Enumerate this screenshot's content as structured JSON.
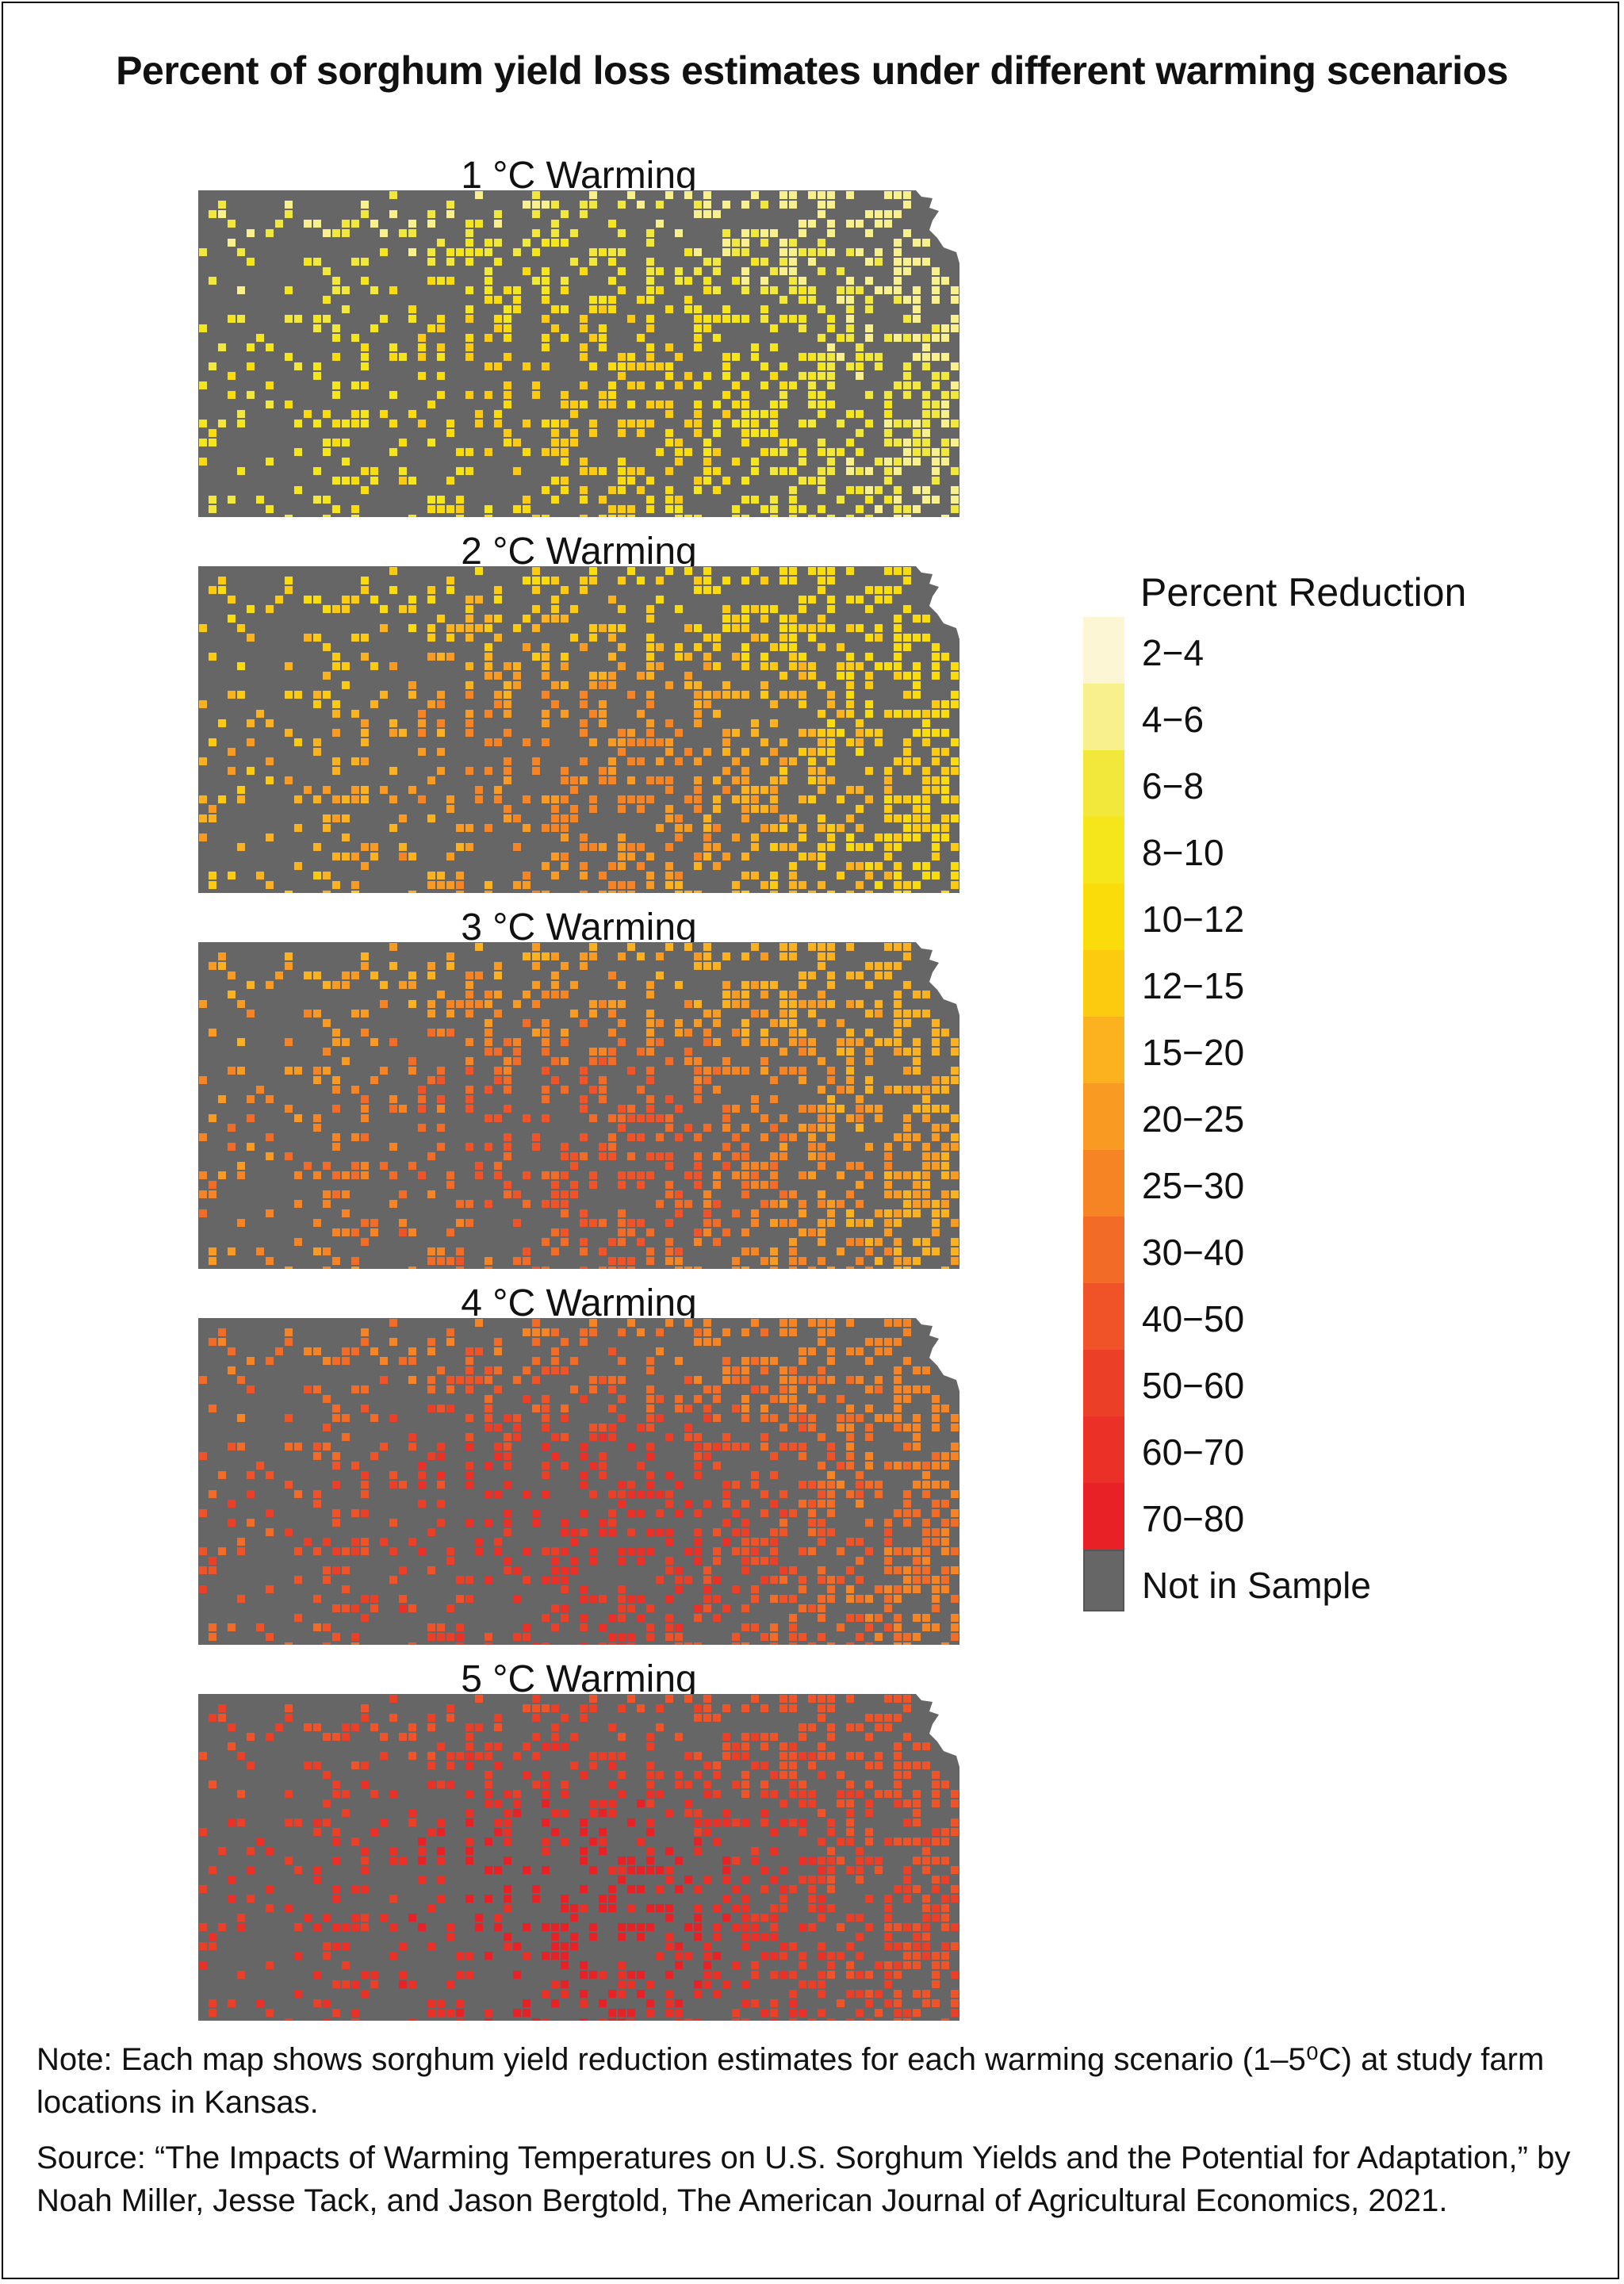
{
  "title": "Percent of sorghum yield loss estimates under different warming scenarios",
  "maps": [
    {
      "label": "1 °C Warming",
      "base_class": 2,
      "hot_class": 5
    },
    {
      "label": "2 °C Warming",
      "base_class": 5,
      "hot_class": 8
    },
    {
      "label": "3 °C Warming",
      "base_class": 7,
      "hot_class": 10
    },
    {
      "label": "4 °C Warming",
      "base_class": 9,
      "hot_class": 12
    },
    {
      "label": "5 °C Warming",
      "base_class": 11,
      "hot_class": 13
    }
  ],
  "legend": {
    "title": "Percent Reduction",
    "classes": [
      {
        "label": "2−4",
        "color": "#FDF6D5"
      },
      {
        "label": "4−6",
        "color": "#F7F08C"
      },
      {
        "label": "6−8",
        "color": "#F2E83C"
      },
      {
        "label": "8−10",
        "color": "#F4E61A"
      },
      {
        "label": "10−12",
        "color": "#FADC0A"
      },
      {
        "label": "12−15",
        "color": "#FCCB10"
      },
      {
        "label": "15−20",
        "color": "#FBB21E"
      },
      {
        "label": "20−25",
        "color": "#F99A22"
      },
      {
        "label": "25−30",
        "color": "#F68425"
      },
      {
        "label": "30−40",
        "color": "#F26B27"
      },
      {
        "label": "40−50",
        "color": "#EF5327"
      },
      {
        "label": "50−60",
        "color": "#EC3F27"
      },
      {
        "label": "60−70",
        "color": "#EA3027"
      },
      {
        "label": "70−80",
        "color": "#E82127"
      }
    ],
    "not_in_sample": {
      "label": "Not in Sample",
      "color": "#666666"
    }
  },
  "note": "Note: Each map shows sorghum yield reduction estimates for each warming scenario (1–5⁰C) at study farm locations in Kansas.",
  "source": "Source: “The Impacts of Warming Temperatures on U.S. Sorghum Yields and the Potential for Adaptation,” by Noah Miller, Jesse Tack, and Jason Bergtold, The American Journal of Agricultural Economics, 2021."
}
